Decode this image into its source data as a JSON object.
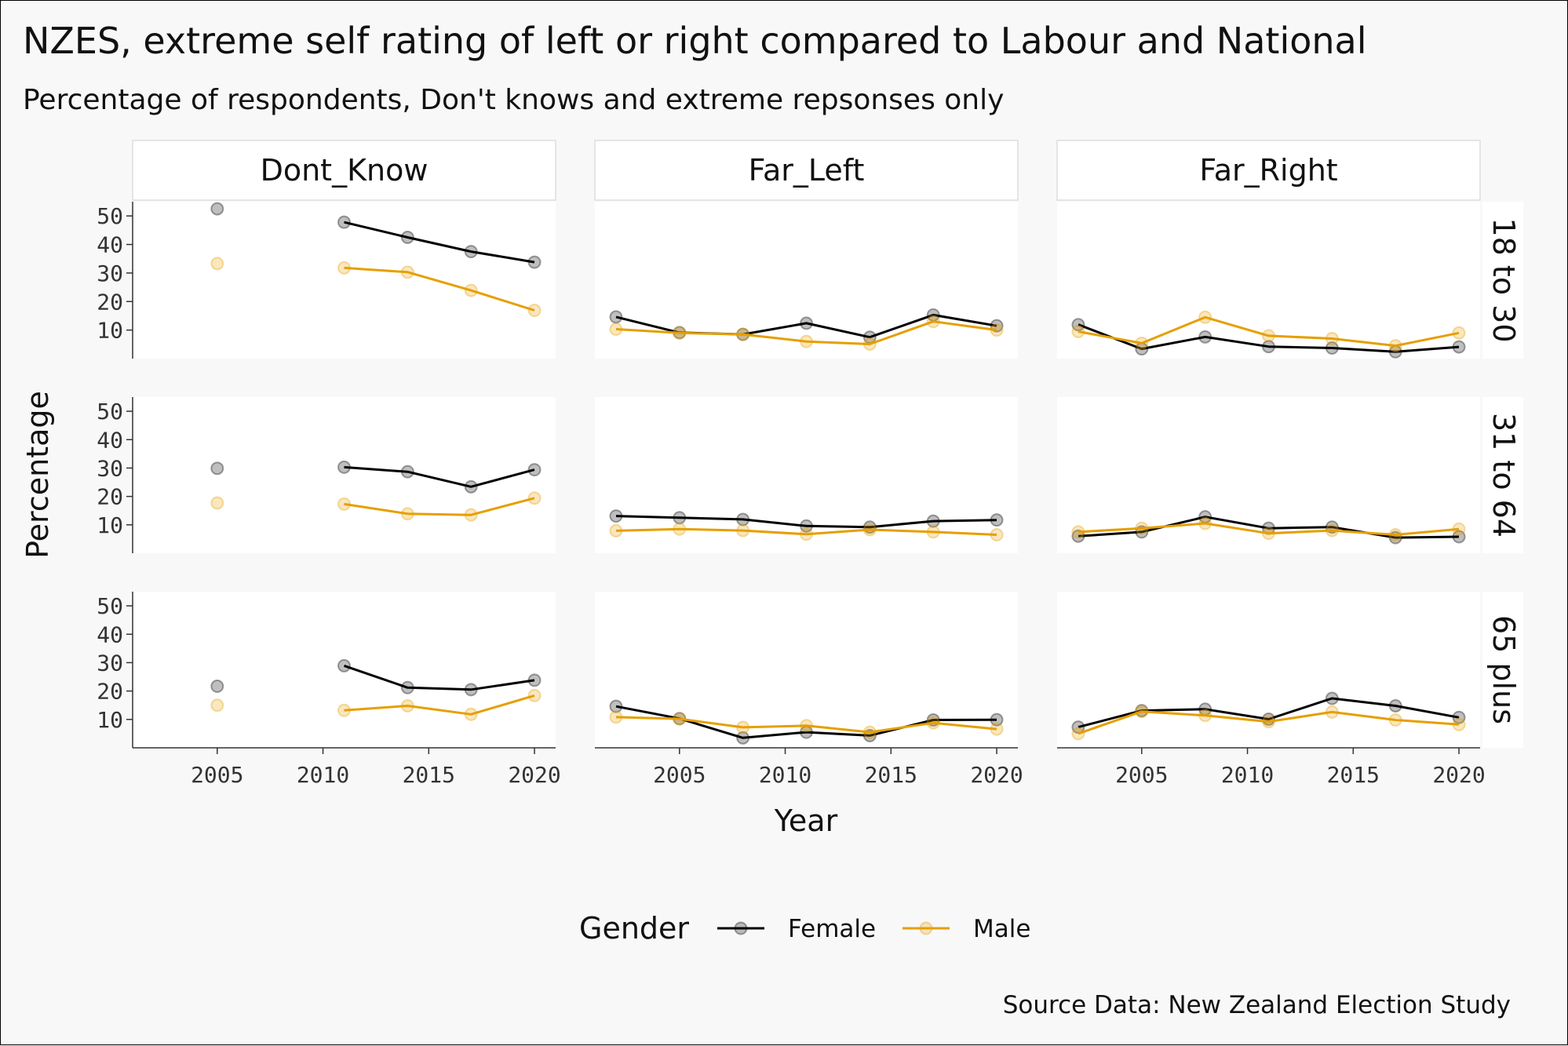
{
  "chart_data": {
    "type": "line",
    "title": "NZES, extreme self rating of left or right compared to Labour and National",
    "subtitle": "Percentage of respondents, Don't knows and extreme repsonses only",
    "caption": "Source Data: New Zealand Election Study",
    "xlabel": "Year",
    "ylabel": "Percentage",
    "x_ticks": [
      2005,
      2010,
      2015,
      2020
    ],
    "y_ticks": [
      10,
      20,
      30,
      40,
      50
    ],
    "xlim": [
      2001,
      2021
    ],
    "ylim": [
      0,
      55
    ],
    "grid": false,
    "legend": {
      "title": "Gender",
      "position": "bottom",
      "entries": [
        {
          "name": "Female",
          "color": "#000000"
        },
        {
          "name": "Male",
          "color": "#E69F00"
        }
      ]
    },
    "columns": [
      "Dont_Know",
      "Far_Left",
      "Far_Right"
    ],
    "rows": [
      "18 to 30",
      "31 to 64",
      "65 plus"
    ],
    "panels": [
      {
        "column": "Dont_Know",
        "row": "18 to 30",
        "series": [
          {
            "name": "Female",
            "x": [
              2005,
              2011,
              2014,
              2017,
              2020
            ],
            "y": [
              52.5,
              47.8,
              42.5,
              37.5,
              33.8
            ],
            "line_from_index": 1
          },
          {
            "name": "Male",
            "x": [
              2005,
              2011,
              2014,
              2017,
              2020
            ],
            "y": [
              33.3,
              31.8,
              30.3,
              23.9,
              16.9
            ],
            "line_from_index": 1
          }
        ]
      },
      {
        "column": "Far_Left",
        "row": "18 to 30",
        "series": [
          {
            "name": "Female",
            "x": [
              2002,
              2005,
              2008,
              2011,
              2014,
              2017,
              2020
            ],
            "y": [
              14.6,
              9.1,
              8.5,
              12.4,
              7.5,
              15.3,
              11.5
            ]
          },
          {
            "name": "Male",
            "x": [
              2002,
              2005,
              2008,
              2011,
              2014,
              2017,
              2020
            ],
            "y": [
              10.3,
              9.0,
              8.5,
              6.0,
              5.1,
              13.0,
              10.0
            ]
          }
        ]
      },
      {
        "column": "Far_Right",
        "row": "18 to 30",
        "series": [
          {
            "name": "Female",
            "x": [
              2002,
              2005,
              2008,
              2011,
              2014,
              2017,
              2020
            ],
            "y": [
              11.9,
              3.4,
              7.6,
              4.2,
              3.7,
              2.4,
              4.1
            ]
          },
          {
            "name": "Male",
            "x": [
              2002,
              2005,
              2008,
              2011,
              2014,
              2017,
              2020
            ],
            "y": [
              9.5,
              5.4,
              14.5,
              8.0,
              7.0,
              4.5,
              9.0
            ]
          }
        ]
      },
      {
        "column": "Dont_Know",
        "row": "31 to 64",
        "series": [
          {
            "name": "Female",
            "x": [
              2005,
              2011,
              2014,
              2017,
              2020
            ],
            "y": [
              29.9,
              30.3,
              28.7,
              23.4,
              29.4
            ],
            "line_from_index": 1
          },
          {
            "name": "Male",
            "x": [
              2005,
              2011,
              2014,
              2017,
              2020
            ],
            "y": [
              17.7,
              17.3,
              13.9,
              13.5,
              19.4
            ],
            "line_from_index": 1
          }
        ]
      },
      {
        "column": "Far_Left",
        "row": "31 to 64",
        "series": [
          {
            "name": "Female",
            "x": [
              2002,
              2005,
              2008,
              2011,
              2014,
              2017,
              2020
            ],
            "y": [
              13.1,
              12.5,
              11.9,
              9.6,
              9.2,
              11.3,
              11.7
            ]
          },
          {
            "name": "Male",
            "x": [
              2002,
              2005,
              2008,
              2011,
              2014,
              2017,
              2020
            ],
            "y": [
              7.9,
              8.5,
              8.0,
              6.7,
              8.3,
              7.5,
              6.5
            ]
          }
        ]
      },
      {
        "column": "Far_Right",
        "row": "31 to 64",
        "series": [
          {
            "name": "Female",
            "x": [
              2002,
              2005,
              2008,
              2011,
              2014,
              2017,
              2020
            ],
            "y": [
              6.0,
              7.5,
              12.8,
              8.8,
              9.2,
              5.5,
              5.8
            ]
          },
          {
            "name": "Male",
            "x": [
              2002,
              2005,
              2008,
              2011,
              2014,
              2017,
              2020
            ],
            "y": [
              7.5,
              8.8,
              10.5,
              7.0,
              8.0,
              6.5,
              8.5
            ]
          }
        ]
      },
      {
        "column": "Dont_Know",
        "row": "65 plus",
        "series": [
          {
            "name": "Female",
            "x": [
              2005,
              2011,
              2014,
              2017,
              2020
            ],
            "y": [
              21.7,
              28.9,
              21.2,
              20.5,
              23.8
            ],
            "line_from_index": 1
          },
          {
            "name": "Male",
            "x": [
              2005,
              2011,
              2014,
              2017,
              2020
            ],
            "y": [
              15.0,
              13.2,
              14.8,
              11.8,
              18.4
            ],
            "line_from_index": 1
          }
        ]
      },
      {
        "column": "Far_Left",
        "row": "65 plus",
        "series": [
          {
            "name": "Female",
            "x": [
              2002,
              2005,
              2008,
              2011,
              2014,
              2017,
              2020
            ],
            "y": [
              14.6,
              10.3,
              3.5,
              5.5,
              4.3,
              9.8,
              9.9
            ]
          },
          {
            "name": "Male",
            "x": [
              2002,
              2005,
              2008,
              2011,
              2014,
              2017,
              2020
            ],
            "y": [
              10.8,
              10.2,
              7.2,
              7.8,
              5.5,
              8.8,
              6.6
            ]
          }
        ]
      },
      {
        "column": "Far_Right",
        "row": "65 plus",
        "series": [
          {
            "name": "Female",
            "x": [
              2002,
              2005,
              2008,
              2011,
              2014,
              2017,
              2020
            ],
            "y": [
              7.3,
              13.1,
              13.6,
              10.1,
              17.4,
              14.8,
              10.7
            ]
          },
          {
            "name": "Male",
            "x": [
              2002,
              2005,
              2008,
              2011,
              2014,
              2017,
              2020
            ],
            "y": [
              5.0,
              12.8,
              11.4,
              9.2,
              12.6,
              9.8,
              8.2
            ]
          }
        ]
      }
    ]
  }
}
